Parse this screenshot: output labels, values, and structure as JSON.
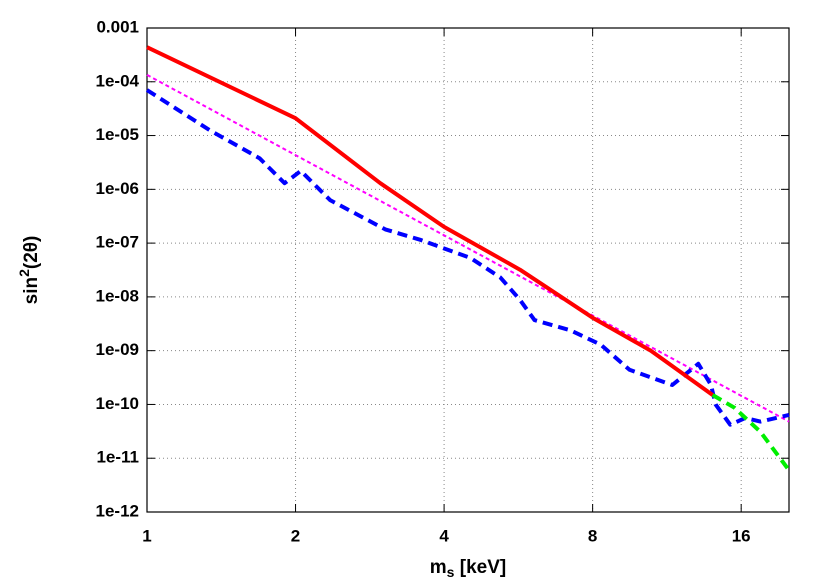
{
  "chart_data": {
    "type": "line",
    "xlabel": [
      "m",
      "s",
      " [keV]"
    ],
    "ylabel": [
      "sin",
      "2",
      "(2θ)"
    ],
    "xlog": true,
    "ylog": true,
    "grid": true,
    "xlim": [
      1,
      20
    ],
    "ylim": [
      1e-12,
      0.001
    ],
    "xticks": [
      1,
      2,
      4,
      8,
      16
    ],
    "yticks": [
      {
        "value": 1e-12,
        "label": "1e-12"
      },
      {
        "value": 1e-11,
        "label": "1e-11"
      },
      {
        "value": 1e-10,
        "label": "1e-10"
      },
      {
        "value": 1e-09,
        "label": "1e-09"
      },
      {
        "value": 1e-08,
        "label": "1e-08"
      },
      {
        "value": 1e-07,
        "label": "1e-07"
      },
      {
        "value": 1e-06,
        "label": "1e-06"
      },
      {
        "value": 1e-05,
        "label": "1e-05"
      },
      {
        "value": 0.0001,
        "label": "1e-04"
      },
      {
        "value": 0.001,
        "label": "0.001"
      }
    ],
    "series": [
      {
        "color": "#ff00ff",
        "style": "dotted",
        "x": [
          1,
          20
        ],
        "values": [
          0.000134,
          4.8e-11
        ]
      },
      {
        "color": "#0000ff",
        "style": "dashed",
        "x": [
          1,
          1.34,
          1.69,
          1.9,
          2.05,
          2.35,
          3.04,
          3.58,
          4.52,
          5.2,
          5.7,
          6.1,
          7.2,
          8.3,
          9.5,
          11.6,
          13.1,
          13.9,
          14.2,
          15.2,
          16.3,
          17.5,
          20
        ],
        "values": [
          7e-05,
          1.26e-05,
          3.8e-06,
          1.3e-06,
          2.2e-06,
          6.3e-07,
          1.8e-07,
          1.15e-07,
          5.3e-08,
          2.3e-08,
          8.8e-09,
          3.7e-09,
          2.4e-09,
          1.3e-09,
          4.4e-10,
          2.3e-10,
          5.7e-10,
          2.3e-10,
          1e-10,
          4.2e-11,
          5.6e-11,
          4.8e-11,
          6.4e-11
        ]
      },
      {
        "color": "#ff0000",
        "style": "solid",
        "x": [
          1,
          2,
          2.97,
          4,
          5.7,
          8,
          10.5,
          14
        ],
        "values": [
          0.00044,
          2.1e-05,
          1.3e-06,
          2e-07,
          3.2e-08,
          4.1e-09,
          1e-09,
          1.5e-10
        ]
      },
      {
        "color": "#00ee00",
        "style": "dashed",
        "x": [
          14,
          15.5,
          17.5,
          20
        ],
        "values": [
          1.5e-10,
          8.7e-11,
          3.1e-11,
          6e-12
        ]
      }
    ]
  }
}
